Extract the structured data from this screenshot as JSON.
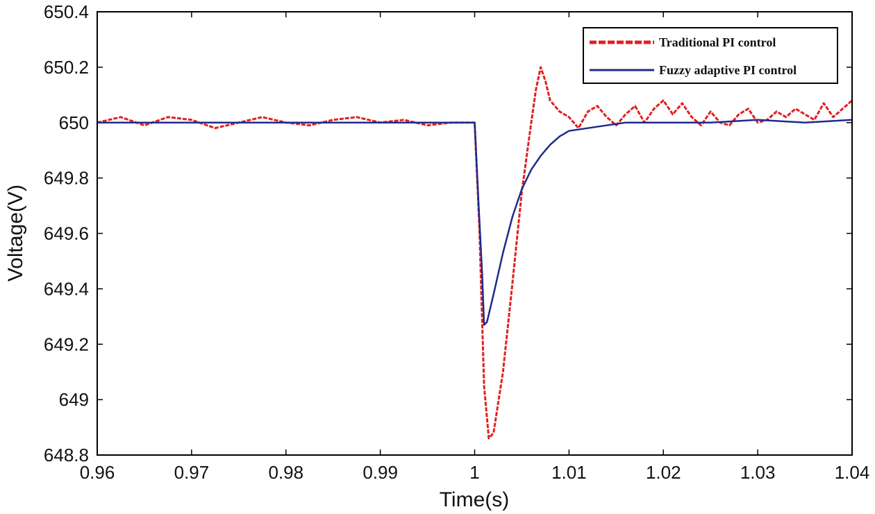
{
  "chart_data": {
    "type": "line",
    "xlabel": "Time(s)",
    "ylabel": "Voltage(V)",
    "xlim": [
      0.96,
      1.04
    ],
    "ylim": [
      648.8,
      650.4
    ],
    "xticks": [
      0.96,
      0.97,
      0.98,
      0.99,
      1.0,
      1.01,
      1.02,
      1.03,
      1.04
    ],
    "xtick_labels": [
      "0.96",
      "0.97",
      "0.98",
      "0.99",
      "1",
      "1.01",
      "1.02",
      "1.03",
      "1.04"
    ],
    "yticks": [
      648.8,
      649.0,
      649.2,
      649.4,
      649.6,
      649.8,
      650.0,
      650.2,
      650.4
    ],
    "ytick_labels": [
      "648.8",
      "649",
      "649.2",
      "649.4",
      "649.6",
      "649.8",
      "650",
      "650.2",
      "650.4"
    ],
    "grid": false,
    "legend_position": "top-right",
    "series": [
      {
        "name": "Traditional PI control",
        "color": "#e02020",
        "style": "dashed",
        "points": [
          [
            0.96,
            650.0
          ],
          [
            0.9625,
            650.02
          ],
          [
            0.965,
            649.99
          ],
          [
            0.9675,
            650.02
          ],
          [
            0.97,
            650.01
          ],
          [
            0.9725,
            649.98
          ],
          [
            0.975,
            650.0
          ],
          [
            0.9775,
            650.02
          ],
          [
            0.98,
            650.0
          ],
          [
            0.9825,
            649.99
          ],
          [
            0.985,
            650.01
          ],
          [
            0.9875,
            650.02
          ],
          [
            0.99,
            650.0
          ],
          [
            0.9925,
            650.01
          ],
          [
            0.995,
            649.99
          ],
          [
            0.9975,
            650.0
          ],
          [
            1.0,
            650.0
          ],
          [
            1.0005,
            649.62
          ],
          [
            1.001,
            649.05
          ],
          [
            1.0015,
            648.86
          ],
          [
            1.002,
            648.88
          ],
          [
            1.003,
            649.1
          ],
          [
            1.004,
            649.42
          ],
          [
            1.005,
            649.75
          ],
          [
            1.006,
            650.0
          ],
          [
            1.0065,
            650.12
          ],
          [
            1.007,
            650.2
          ],
          [
            1.0075,
            650.15
          ],
          [
            1.008,
            650.08
          ],
          [
            1.009,
            650.04
          ],
          [
            1.01,
            650.02
          ],
          [
            1.011,
            649.98
          ],
          [
            1.012,
            650.04
          ],
          [
            1.013,
            650.06
          ],
          [
            1.014,
            650.02
          ],
          [
            1.015,
            649.99
          ],
          [
            1.016,
            650.03
          ],
          [
            1.017,
            650.06
          ],
          [
            1.018,
            650.0
          ],
          [
            1.019,
            650.05
          ],
          [
            1.02,
            650.08
          ],
          [
            1.021,
            650.03
          ],
          [
            1.022,
            650.07
          ],
          [
            1.023,
            650.02
          ],
          [
            1.024,
            649.99
          ],
          [
            1.025,
            650.04
          ],
          [
            1.026,
            650.0
          ],
          [
            1.027,
            649.99
          ],
          [
            1.028,
            650.03
          ],
          [
            1.029,
            650.05
          ],
          [
            1.03,
            650.0
          ],
          [
            1.031,
            650.01
          ],
          [
            1.032,
            650.04
          ],
          [
            1.033,
            650.02
          ],
          [
            1.034,
            650.05
          ],
          [
            1.035,
            650.03
          ],
          [
            1.036,
            650.01
          ],
          [
            1.037,
            650.07
          ],
          [
            1.038,
            650.02
          ],
          [
            1.039,
            650.05
          ],
          [
            1.04,
            650.08
          ]
        ]
      },
      {
        "name": "Fuzzy adaptive PI control",
        "color": "#1f2a8c",
        "style": "solid",
        "points": [
          [
            0.96,
            650.0
          ],
          [
            0.965,
            650.0
          ],
          [
            0.97,
            650.0
          ],
          [
            0.975,
            650.0
          ],
          [
            0.98,
            650.0
          ],
          [
            0.985,
            650.0
          ],
          [
            0.99,
            650.0
          ],
          [
            0.995,
            650.0
          ],
          [
            1.0,
            650.0
          ],
          [
            1.0004,
            649.72
          ],
          [
            1.0008,
            649.45
          ],
          [
            1.001,
            649.27
          ],
          [
            1.0013,
            649.28
          ],
          [
            1.002,
            649.38
          ],
          [
            1.003,
            649.53
          ],
          [
            1.004,
            649.66
          ],
          [
            1.005,
            649.76
          ],
          [
            1.006,
            649.83
          ],
          [
            1.007,
            649.88
          ],
          [
            1.008,
            649.92
          ],
          [
            1.009,
            649.95
          ],
          [
            1.01,
            649.97
          ],
          [
            1.012,
            649.98
          ],
          [
            1.014,
            649.99
          ],
          [
            1.016,
            650.0
          ],
          [
            1.02,
            650.0
          ],
          [
            1.025,
            650.0
          ],
          [
            1.03,
            650.01
          ],
          [
            1.035,
            650.0
          ],
          [
            1.04,
            650.01
          ]
        ]
      }
    ]
  }
}
